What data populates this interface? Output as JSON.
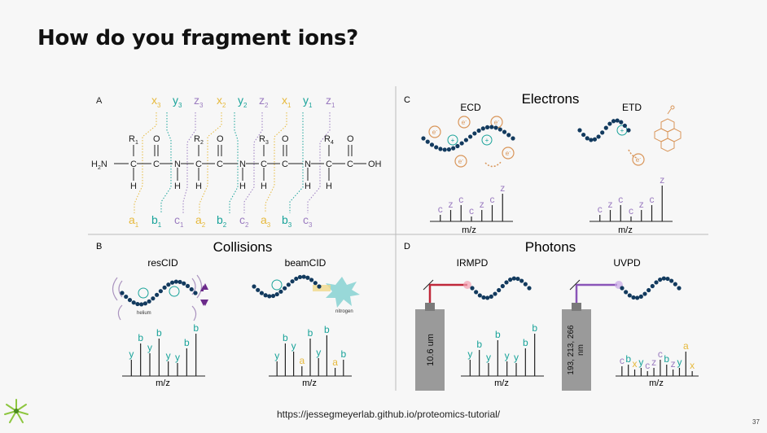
{
  "slide": {
    "title": "How do you fragment ions?",
    "url": "https://jessegmeyerlab.github.io/proteomics-tutorial/",
    "page_number": "37"
  },
  "colors": {
    "navy": "#123a5e",
    "yellow": "#e6b93c",
    "teal": "#1aa39a",
    "purple": "#9b7cc0",
    "orange": "#d9965a",
    "red": "#c0283a",
    "violet": "#8a55b8",
    "gray": "#8a8a8a"
  },
  "panel_a": {
    "label": "A",
    "top_ions": [
      "x",
      "3",
      "y",
      "3",
      "z",
      "3",
      "x",
      "2",
      "y",
      "2",
      "z",
      "2",
      "x",
      "1",
      "y",
      "1",
      "z",
      "1"
    ],
    "bottom_ions": [
      "a",
      "1",
      "b",
      "1",
      "c",
      "1",
      "a",
      "2",
      "b",
      "2",
      "c",
      "2",
      "a",
      "3",
      "b",
      "3",
      "c",
      "3"
    ],
    "h2n": "H",
    "h2n_sub": "2",
    "h2n_n": "N",
    "c": "C",
    "n": "N",
    "o": "O",
    "h": "H",
    "oh": "OH",
    "r1": "R",
    "r1s": "1",
    "r2": "R",
    "r2s": "2",
    "r3": "R",
    "r3s": "3",
    "r4": "R",
    "r4s": "4"
  },
  "panel_b": {
    "label": "B",
    "heading": "Collisions",
    "left_title": "resCID",
    "right_title": "beamCID",
    "helium": "helium",
    "nitrogen": "nitrogen",
    "left_peaks": [
      "y",
      "b",
      "y",
      "b",
      "y",
      "y",
      "b",
      "b"
    ],
    "right_peaks": [
      "y",
      "b",
      "y",
      "a",
      "b",
      "y",
      "b",
      "a",
      "b"
    ],
    "xlabel": "m/z"
  },
  "panel_c": {
    "label": "C",
    "heading": "Electrons",
    "left_title": "ECD",
    "right_title": "ETD",
    "electron": "e",
    "electron_sup": "-",
    "plus": "+",
    "left_peaks": [
      "c",
      "z",
      "c",
      "c",
      "z",
      "c",
      "z"
    ],
    "right_peaks": [
      "c",
      "z",
      "c",
      "c",
      "z",
      "c",
      "z"
    ],
    "xlabel": "m/z"
  },
  "panel_d": {
    "label": "D",
    "heading": "Photons",
    "left_title": "IRMPD",
    "right_title": "UVPD",
    "left_laser": "10.6 um",
    "right_laser_1": "193, 213, 266",
    "right_laser_2": "nm",
    "left_peaks": [
      "y",
      "b",
      "y",
      "b",
      "y",
      "y",
      "b",
      "b"
    ],
    "right_peaks": [
      "c",
      "b",
      "x",
      "y",
      "c",
      "z",
      "c",
      "b",
      "z",
      "y",
      "a",
      "x"
    ],
    "xlabel": "m/z"
  }
}
